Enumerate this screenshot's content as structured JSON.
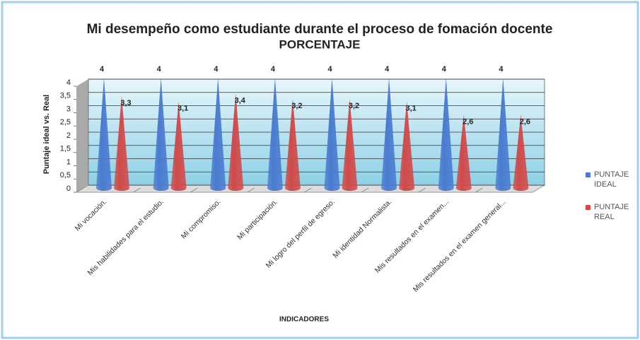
{
  "chart_data": {
    "type": "cone",
    "title": "Mi desempeño como estudiante durante el proceso de fomación docente",
    "subtitle": "PORCENTAJE",
    "y_label": "Puntaje ideal vs. Real",
    "x_label": "INDICADORES",
    "categories": [
      "Mi vocación.",
      "Mis habilidades para el estudio.",
      "Mi compromiso.",
      "Mi participación.",
      "Mi logro del perfil de egreso.",
      "Mi identidad Normalista.",
      "Mis resultados en el examen...",
      "Mis resultados en el examen general..."
    ],
    "series": [
      {
        "name": "PUNTAJE IDEAL",
        "color": "#4a7bd0",
        "values": [
          4,
          4,
          4,
          4,
          4,
          4,
          4,
          4
        ]
      },
      {
        "name": "PUNTAJE REAL",
        "color": "#d04a4a",
        "values": [
          3.3,
          3.1,
          3.4,
          3.2,
          3.2,
          3.1,
          2.6,
          2.6
        ],
        "value_labels": [
          "3,3",
          "3,1",
          "3,4",
          "3,2",
          "3,2",
          "3,1",
          "2,6",
          "2,6"
        ]
      }
    ],
    "ylim": [
      0,
      4
    ],
    "yticks": [
      0,
      {
        "value": 0.5,
        "label": "0,5"
      },
      1,
      {
        "value": 1.5,
        "label": "1,5"
      },
      2,
      {
        "value": 2.5,
        "label": "2,5"
      },
      3,
      {
        "value": 3.5,
        "label": "3,5"
      },
      4
    ],
    "grid": true,
    "legend": "right"
  }
}
